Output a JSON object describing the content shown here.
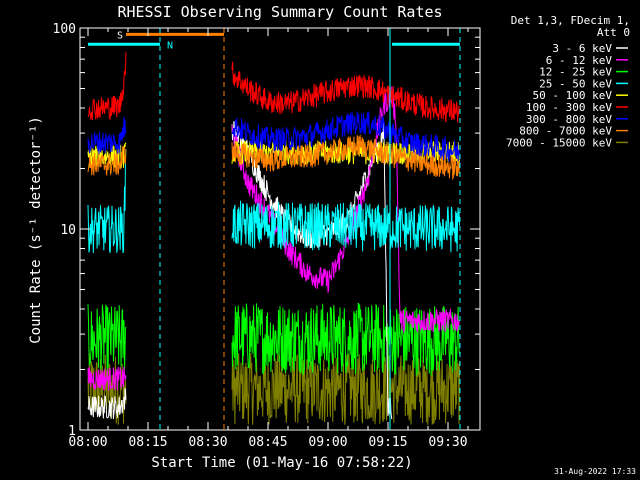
{
  "chart_data": {
    "type": "line",
    "title": "RHESSI Observing Summary Count Rates",
    "xlabel": "Start Time (01-May-16 07:58:22)",
    "ylabel": "Count Rate (s⁻¹ detector⁻¹)",
    "yscale": "log",
    "ylim": [
      1,
      100
    ],
    "xlim_minutes": [
      -2,
      98
    ],
    "x_ticks": [
      "08:00",
      "08:15",
      "08:30",
      "08:45",
      "09:00",
      "09:15",
      "09:30"
    ],
    "x_tick_minutes": [
      0,
      15,
      30,
      45,
      60,
      75,
      90
    ],
    "y_ticks": [
      "1",
      "10",
      "100"
    ],
    "y_tick_values": [
      1,
      10,
      100
    ],
    "legend_header": [
      "Det 1,3, FDecim 1,",
      "Att 0"
    ],
    "footer_date": "31-Aug-2022 17:33",
    "flags": {
      "saa": {
        "label": "S",
        "start": 9.5,
        "end": 34,
        "color": "#ff8000"
      },
      "night": {
        "label": "N",
        "start": 2.5,
        "end": 35,
        "color": "#00ffff"
      }
    },
    "boundaries": {
      "cyan": [
        18,
        93
      ],
      "orange": [
        34
      ]
    },
    "bars": [
      {
        "color": "#00ffff",
        "start": 0,
        "end": 18
      },
      {
        "color": "#00ffff",
        "start": 76,
        "end": 93
      }
    ],
    "series": [
      {
        "name": "3 - 6 keV",
        "color": "#ffffff",
        "t": [
          0,
          8,
          9,
          36,
          40,
          45,
          50,
          55,
          60,
          65,
          68,
          71,
          74,
          75,
          76
        ],
        "v": [
          1.3,
          1.3,
          1.4,
          32,
          24,
          15,
          10.5,
          9,
          9.5,
          11,
          15,
          22,
          30,
          1.3,
          1.3
        ]
      },
      {
        "name": "6 - 12 keV",
        "color": "#ff00ff",
        "t": [
          0,
          8,
          9,
          36,
          40,
          45,
          50,
          55,
          60,
          62,
          66,
          70,
          72,
          74,
          76,
          77,
          78,
          90,
          93
        ],
        "v": [
          1.8,
          1.8,
          1.8,
          30,
          17,
          12,
          8,
          6,
          5.5,
          6.5,
          10,
          18,
          28,
          42,
          46,
          35,
          3.5,
          3.5,
          3.5
        ]
      },
      {
        "name": "12 - 25 keV",
        "color": "#00ff00",
        "t": [
          0,
          9,
          9.5,
          36,
          93
        ],
        "v": [
          2.8,
          2.8,
          3,
          2.9,
          2.8
        ]
      },
      {
        "name": "25 - 50 keV",
        "color": "#00ffff",
        "t": [
          0,
          9,
          9.5,
          36,
          93
        ],
        "v": [
          10,
          10,
          25,
          10.5,
          10
        ]
      },
      {
        "name": "50 - 100 keV",
        "color": "#ffff00",
        "t": [
          0,
          9,
          9.5,
          36,
          93
        ],
        "v": [
          23,
          23,
          24,
          24,
          24
        ]
      },
      {
        "name": "100 - 300 keV",
        "color": "#ff0000",
        "t": [
          0,
          4,
          8,
          9,
          9.5,
          36,
          40,
          45,
          50,
          55,
          60,
          64,
          68,
          72,
          76,
          80,
          85,
          90,
          93
        ],
        "v": [
          40,
          40,
          41,
          55,
          70,
          60,
          50,
          43,
          42,
          45,
          48,
          51,
          52,
          50,
          46,
          43,
          40,
          39,
          38
        ]
      },
      {
        "name": "300 - 800 keV",
        "color": "#0000ff",
        "t": [
          0,
          8,
          9,
          36,
          40,
          45,
          50,
          55,
          60,
          64,
          68,
          72,
          76,
          80,
          85,
          90,
          93
        ],
        "v": [
          27,
          27,
          32,
          33,
          30,
          28,
          28,
          29,
          31,
          33,
          34,
          33,
          30,
          27,
          26,
          25,
          24
        ]
      },
      {
        "name": "800 - 7000 keV",
        "color": "#ff8000",
        "t": [
          0,
          8,
          9,
          36,
          45,
          55,
          60,
          68,
          76,
          85,
          93
        ],
        "v": [
          21,
          21,
          24,
          24,
          22,
          23,
          24,
          26,
          23,
          21,
          20
        ]
      },
      {
        "name": "7000 - 15000 keV",
        "color": "#808000",
        "t": [
          0,
          9,
          9.5,
          36,
          93
        ],
        "v": [
          1.6,
          1.6,
          1.6,
          1.6,
          1.6
        ]
      }
    ]
  }
}
